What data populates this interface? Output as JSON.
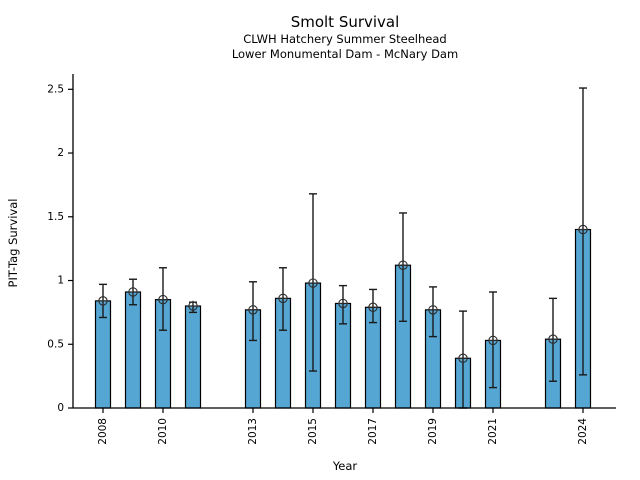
{
  "figure": {
    "title": "Smolt Survival",
    "subtitle1": "CLWH Hatchery Summer Steelhead",
    "subtitle2": "Lower Monumental Dam - McNary Dam"
  },
  "chart_data": {
    "type": "bar",
    "title": "Smolt Survival",
    "subtitles": [
      "CLWH Hatchery Summer Steelhead",
      "Lower Monumental Dam - McNary Dam"
    ],
    "xlabel": "Year",
    "ylabel": "PIT-Tag Survival",
    "x_range": [
      2007.0,
      2025.1
    ],
    "ylim": [
      0,
      2.62
    ],
    "grid": false,
    "legend": "none",
    "bar_color": "#56a6d4",
    "bar_edge_color": "#000000",
    "errorbar_color": "#1a1a1a",
    "marker": "open-circle-plus",
    "marker_color": "#2b2b2b",
    "yticks": [
      0,
      0.5,
      1,
      1.5,
      2,
      2.5
    ],
    "ytick_labels": [
      "0",
      "0.5",
      "1",
      "1.5",
      "2",
      "2.5"
    ],
    "xticks": [
      2008,
      2010,
      2013,
      2015,
      2017,
      2019,
      2021,
      2024
    ],
    "xtick_labels": [
      "2008",
      "2010",
      "2013",
      "2015",
      "2017",
      "2019",
      "2021",
      "2024"
    ],
    "missing_years": [
      2012,
      2022
    ],
    "points": [
      {
        "year": 2008,
        "value": 0.84,
        "ci_low": 0.71,
        "ci_high": 0.97
      },
      {
        "year": 2009,
        "value": 0.91,
        "ci_low": 0.81,
        "ci_high": 1.01
      },
      {
        "year": 2010,
        "value": 0.85,
        "ci_low": 0.61,
        "ci_high": 1.1
      },
      {
        "year": 2011,
        "value": 0.8,
        "ci_low": 0.75,
        "ci_high": 0.83
      },
      {
        "year": 2013,
        "value": 0.77,
        "ci_low": 0.53,
        "ci_high": 0.99
      },
      {
        "year": 2014,
        "value": 0.86,
        "ci_low": 0.61,
        "ci_high": 1.1
      },
      {
        "year": 2015,
        "value": 0.98,
        "ci_low": 0.29,
        "ci_high": 1.68
      },
      {
        "year": 2016,
        "value": 0.82,
        "ci_low": 0.66,
        "ci_high": 0.96
      },
      {
        "year": 2017,
        "value": 0.79,
        "ci_low": 0.67,
        "ci_high": 0.93
      },
      {
        "year": 2018,
        "value": 1.12,
        "ci_low": 0.68,
        "ci_high": 1.53
      },
      {
        "year": 2019,
        "value": 0.77,
        "ci_low": 0.56,
        "ci_high": 0.95
      },
      {
        "year": 2020,
        "value": 0.39,
        "ci_low": 0.0,
        "ci_high": 0.76
      },
      {
        "year": 2021,
        "value": 0.53,
        "ci_low": 0.16,
        "ci_high": 0.91
      },
      {
        "year": 2023,
        "value": 0.54,
        "ci_low": 0.21,
        "ci_high": 0.86
      },
      {
        "year": 2024,
        "value": 1.4,
        "ci_low": 0.26,
        "ci_high": 2.51
      }
    ]
  }
}
